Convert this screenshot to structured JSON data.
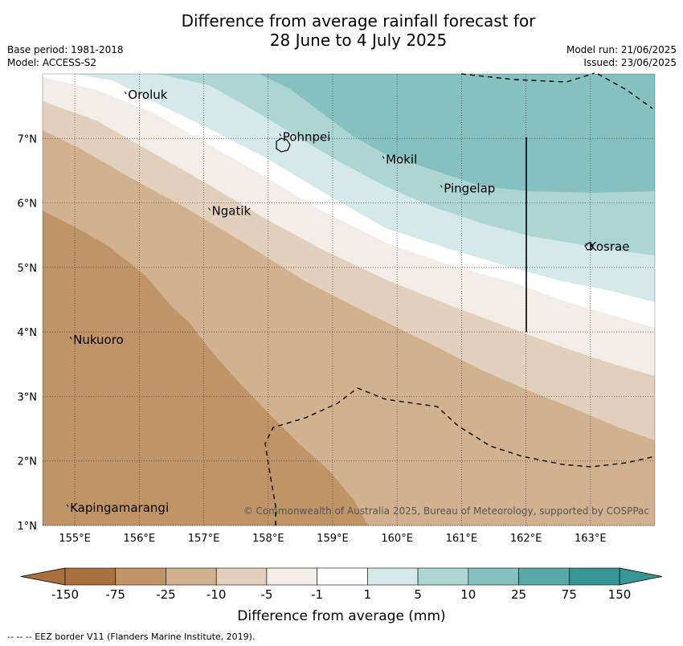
{
  "title_line1": "Difference from average rainfall forecast for",
  "title_line2": "28 June to 4 July 2025",
  "base_period": "Base period: 1981-2018",
  "model": "Model: ACCESS-S2",
  "model_run": "Model run: 21/06/2025",
  "issued": "Issued: 23/06/2025",
  "copyright": "© Commonwealth of Australia 2025, Bureau of Meteorology, supported by COSPPac",
  "footer": "--  --  -- EEZ border V11 (Flanders Marine Institute, 2019).",
  "map": {
    "lon_range": [
      154.5,
      164.0
    ],
    "lat_range": [
      1.0,
      8.0
    ],
    "lon_ticks": [
      "155°E",
      "156°E",
      "157°E",
      "158°E",
      "159°E",
      "160°E",
      "161°E",
      "162°E",
      "163°E"
    ],
    "lat_ticks": [
      "7°N",
      "6°N",
      "5°N",
      "4°N",
      "3°N",
      "2°N",
      "1°N"
    ],
    "places": [
      {
        "name": "Oroluk",
        "lon": 155.8,
        "lat": 7.65
      },
      {
        "name": "Pohnpei",
        "lon": 158.2,
        "lat": 7.0
      },
      {
        "name": "Mokil",
        "lon": 159.8,
        "lat": 6.65
      },
      {
        "name": "Pingelap",
        "lon": 160.7,
        "lat": 6.2
      },
      {
        "name": "Ngatik",
        "lon": 157.1,
        "lat": 5.85
      },
      {
        "name": "Kosrae",
        "lon": 162.95,
        "lat": 5.3
      },
      {
        "name": "Nukuoro",
        "lon": 154.95,
        "lat": 3.85
      },
      {
        "name": "Kapingamarangi",
        "lon": 154.9,
        "lat": 1.25
      }
    ],
    "colors": [
      "#a8703c",
      "#bf9467",
      "#d2b190",
      "#e3d0bc",
      "#f2ede6",
      "#ffffff",
      "#d4e9e8",
      "#acd5d4",
      "#84c1c0",
      "#58a9a7",
      "#359693"
    ]
  },
  "colorbar": {
    "labels": [
      "-150",
      "-75",
      "-25",
      "-10",
      "-5",
      "-1",
      "1",
      "5",
      "10",
      "25",
      "75",
      "150"
    ],
    "title": "Difference from average (mm)"
  }
}
